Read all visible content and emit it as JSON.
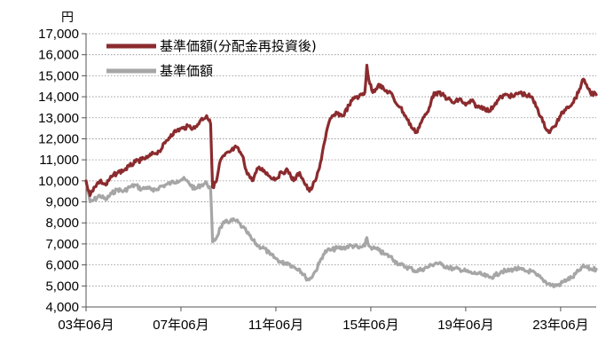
{
  "chart_data": {
    "type": "line",
    "unit_label": "円",
    "ylim": [
      4000,
      17000
    ],
    "y_ticks": [
      4000,
      5000,
      6000,
      7000,
      8000,
      9000,
      10000,
      11000,
      12000,
      13000,
      14000,
      15000,
      16000,
      17000
    ],
    "y_tick_labels": [
      "4,000",
      "5,000",
      "6,000",
      "7,000",
      "8,000",
      "9,000",
      "10,000",
      "11,000",
      "12,000",
      "13,000",
      "14,000",
      "15,000",
      "16,000",
      "17,000"
    ],
    "x_range": [
      "2003-06",
      "2024-12"
    ],
    "x_ticks": [
      "2003-06",
      "2007-06",
      "2011-06",
      "2015-06",
      "2019-06",
      "2023-06"
    ],
    "x_tick_labels": [
      "03年06月",
      "07年06月",
      "11年06月",
      "15年06月",
      "19年06月",
      "23年06月"
    ],
    "grid": "horizontal-dotted",
    "legend_position": "top-left",
    "series": [
      {
        "name": "基準価額(分配金再投資後)",
        "color": "#8b2b2e",
        "points": [
          [
            "2003-06",
            10000
          ],
          [
            "2003-08",
            9300
          ],
          [
            "2003-10",
            9700
          ],
          [
            "2004-01",
            10000
          ],
          [
            "2004-04",
            9800
          ],
          [
            "2004-07",
            10200
          ],
          [
            "2004-10",
            10400
          ],
          [
            "2005-01",
            10500
          ],
          [
            "2005-04",
            10700
          ],
          [
            "2005-07",
            10900
          ],
          [
            "2005-10",
            11000
          ],
          [
            "2006-01",
            11100
          ],
          [
            "2006-04",
            11300
          ],
          [
            "2006-07",
            11400
          ],
          [
            "2006-10",
            11800
          ],
          [
            "2007-01",
            12200
          ],
          [
            "2007-04",
            12400
          ],
          [
            "2007-07",
            12500
          ],
          [
            "2007-10",
            12600
          ],
          [
            "2008-01",
            12500
          ],
          [
            "2008-04",
            12900
          ],
          [
            "2008-07",
            13100
          ],
          [
            "2008-09",
            12700
          ],
          [
            "2008-10",
            9700
          ],
          [
            "2008-12",
            10000
          ],
          [
            "2009-02",
            11000
          ],
          [
            "2009-04",
            11200
          ],
          [
            "2009-07",
            11400
          ],
          [
            "2009-10",
            11600
          ],
          [
            "2010-01",
            11200
          ],
          [
            "2010-03",
            10500
          ],
          [
            "2010-06",
            10000
          ],
          [
            "2010-09",
            10600
          ],
          [
            "2010-12",
            10500
          ],
          [
            "2011-03",
            10200
          ],
          [
            "2011-06",
            10100
          ],
          [
            "2011-09",
            10400
          ],
          [
            "2011-12",
            10500
          ],
          [
            "2012-03",
            10000
          ],
          [
            "2012-06",
            10400
          ],
          [
            "2012-09",
            9800
          ],
          [
            "2012-11",
            9500
          ],
          [
            "2013-02",
            10000
          ],
          [
            "2013-04",
            10600
          ],
          [
            "2013-06",
            11600
          ],
          [
            "2013-08",
            12500
          ],
          [
            "2013-10",
            13000
          ],
          [
            "2014-01",
            13200
          ],
          [
            "2014-04",
            13100
          ],
          [
            "2014-07",
            13600
          ],
          [
            "2014-10",
            14000
          ],
          [
            "2014-12",
            14000
          ],
          [
            "2015-03",
            14200
          ],
          [
            "2015-04",
            15500
          ],
          [
            "2015-05",
            14800
          ],
          [
            "2015-07",
            14200
          ],
          [
            "2015-10",
            14600
          ],
          [
            "2016-01",
            14300
          ],
          [
            "2016-04",
            14200
          ],
          [
            "2016-06",
            13800
          ],
          [
            "2016-09",
            13500
          ],
          [
            "2016-12",
            13000
          ],
          [
            "2017-03",
            12500
          ],
          [
            "2017-05",
            12300
          ],
          [
            "2017-08",
            12900
          ],
          [
            "2017-11",
            13300
          ],
          [
            "2018-01",
            14000
          ],
          [
            "2018-03",
            14200
          ],
          [
            "2018-06",
            14100
          ],
          [
            "2018-09",
            13900
          ],
          [
            "2018-12",
            13700
          ],
          [
            "2019-03",
            13900
          ],
          [
            "2019-06",
            13600
          ],
          [
            "2019-09",
            13800
          ],
          [
            "2019-12",
            13500
          ],
          [
            "2020-03",
            13500
          ],
          [
            "2020-06",
            13300
          ],
          [
            "2020-09",
            13700
          ],
          [
            "2020-12",
            14000
          ],
          [
            "2021-03",
            14100
          ],
          [
            "2021-06",
            14000
          ],
          [
            "2021-09",
            14200
          ],
          [
            "2021-12",
            14100
          ],
          [
            "2022-03",
            14000
          ],
          [
            "2022-06",
            13500
          ],
          [
            "2022-09",
            12800
          ],
          [
            "2022-12",
            12300
          ],
          [
            "2023-03",
            12600
          ],
          [
            "2023-06",
            13100
          ],
          [
            "2023-09",
            13500
          ],
          [
            "2023-12",
            13700
          ],
          [
            "2024-03",
            14200
          ],
          [
            "2024-05",
            14800
          ],
          [
            "2024-07",
            14600
          ],
          [
            "2024-09",
            14200
          ],
          [
            "2024-12",
            14100
          ]
        ]
      },
      {
        "name": "基準価額",
        "color": "#a6a6a6",
        "points": [
          [
            "2003-06",
            10000
          ],
          [
            "2003-08",
            9000
          ],
          [
            "2003-10",
            9100
          ],
          [
            "2004-01",
            9300
          ],
          [
            "2004-04",
            9100
          ],
          [
            "2004-07",
            9400
          ],
          [
            "2004-10",
            9600
          ],
          [
            "2005-01",
            9500
          ],
          [
            "2005-04",
            9700
          ],
          [
            "2005-07",
            9800
          ],
          [
            "2005-10",
            9600
          ],
          [
            "2006-01",
            9700
          ],
          [
            "2006-04",
            9500
          ],
          [
            "2006-07",
            9700
          ],
          [
            "2006-10",
            9800
          ],
          [
            "2007-01",
            9900
          ],
          [
            "2007-04",
            10000
          ],
          [
            "2007-07",
            10100
          ],
          [
            "2007-10",
            9900
          ],
          [
            "2008-01",
            9600
          ],
          [
            "2008-04",
            9800
          ],
          [
            "2008-07",
            9900
          ],
          [
            "2008-09",
            9600
          ],
          [
            "2008-10",
            7100
          ],
          [
            "2008-12",
            7300
          ],
          [
            "2009-02",
            7800
          ],
          [
            "2009-04",
            8000
          ],
          [
            "2009-07",
            8100
          ],
          [
            "2009-10",
            8100
          ],
          [
            "2010-01",
            7800
          ],
          [
            "2010-03",
            7600
          ],
          [
            "2010-06",
            7200
          ],
          [
            "2010-09",
            6900
          ],
          [
            "2010-12",
            6800
          ],
          [
            "2011-03",
            6500
          ],
          [
            "2011-06",
            6300
          ],
          [
            "2011-09",
            6100
          ],
          [
            "2011-12",
            6100
          ],
          [
            "2012-03",
            5900
          ],
          [
            "2012-06",
            5800
          ],
          [
            "2012-09",
            5400
          ],
          [
            "2012-11",
            5300
          ],
          [
            "2013-02",
            5700
          ],
          [
            "2013-04",
            6100
          ],
          [
            "2013-06",
            6500
          ],
          [
            "2013-08",
            6700
          ],
          [
            "2013-10",
            6700
          ],
          [
            "2014-01",
            6800
          ],
          [
            "2014-04",
            6800
          ],
          [
            "2014-07",
            6900
          ],
          [
            "2014-10",
            6900
          ],
          [
            "2014-12",
            6800
          ],
          [
            "2015-03",
            6900
          ],
          [
            "2015-04",
            7300
          ],
          [
            "2015-05",
            6900
          ],
          [
            "2015-07",
            6800
          ],
          [
            "2015-10",
            6700
          ],
          [
            "2016-01",
            6500
          ],
          [
            "2016-04",
            6400
          ],
          [
            "2016-06",
            6200
          ],
          [
            "2016-09",
            6000
          ],
          [
            "2016-12",
            5900
          ],
          [
            "2017-03",
            5800
          ],
          [
            "2017-05",
            5700
          ],
          [
            "2017-08",
            5800
          ],
          [
            "2017-11",
            5900
          ],
          [
            "2018-01",
            6000
          ],
          [
            "2018-03",
            6100
          ],
          [
            "2018-06",
            6000
          ],
          [
            "2018-09",
            5900
          ],
          [
            "2018-12",
            5800
          ],
          [
            "2019-03",
            5800
          ],
          [
            "2019-06",
            5700
          ],
          [
            "2019-09",
            5600
          ],
          [
            "2019-12",
            5600
          ],
          [
            "2020-03",
            5500
          ],
          [
            "2020-06",
            5400
          ],
          [
            "2020-09",
            5500
          ],
          [
            "2020-12",
            5700
          ],
          [
            "2021-03",
            5700
          ],
          [
            "2021-06",
            5800
          ],
          [
            "2021-09",
            5800
          ],
          [
            "2021-12",
            5700
          ],
          [
            "2022-03",
            5700
          ],
          [
            "2022-06",
            5500
          ],
          [
            "2022-09",
            5300
          ],
          [
            "2022-12",
            5100
          ],
          [
            "2023-03",
            5000
          ],
          [
            "2023-06",
            5100
          ],
          [
            "2023-09",
            5300
          ],
          [
            "2023-12",
            5400
          ],
          [
            "2024-03",
            5700
          ],
          [
            "2024-05",
            5900
          ],
          [
            "2024-07",
            5900
          ],
          [
            "2024-09",
            5800
          ],
          [
            "2024-12",
            5800
          ]
        ]
      }
    ]
  }
}
